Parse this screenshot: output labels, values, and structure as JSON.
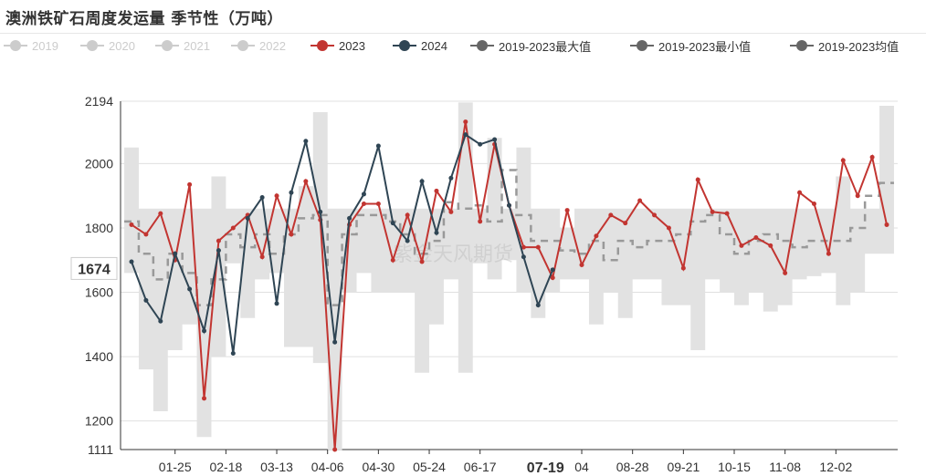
{
  "title": "澳洲铁矿石周度发运量 季节性（万吨）",
  "watermark": "紫金天风期货",
  "legend": [
    {
      "label": "2019",
      "color": "#cccccc",
      "off": true,
      "dashed": false
    },
    {
      "label": "2020",
      "color": "#cccccc",
      "off": true,
      "dashed": false
    },
    {
      "label": "2021",
      "color": "#cccccc",
      "off": true,
      "dashed": false
    },
    {
      "label": "2022",
      "color": "#cccccc",
      "off": true,
      "dashed": false
    },
    {
      "label": "2023",
      "color": "#c23531",
      "off": false,
      "dashed": false
    },
    {
      "label": "2024",
      "color": "#2f4554",
      "off": false,
      "dashed": false
    },
    {
      "label": "2019-2023最大值",
      "color": "#666666",
      "off": false,
      "dashed": false
    },
    {
      "label": "2019-2023最小值",
      "color": "#666666",
      "off": false,
      "dashed": false
    },
    {
      "label": "2019-2023均值",
      "color": "#666666",
      "off": false,
      "dashed": true
    }
  ],
  "pointer": {
    "y_label": "1674",
    "x_label": "07-19",
    "y_value": 1674,
    "x_index": 28.5
  },
  "chart_data": {
    "type": "line",
    "ylim": [
      1111,
      2194
    ],
    "yticks": [
      1111,
      1200,
      1400,
      1600,
      1800,
      2000,
      2194
    ],
    "xticks": [
      {
        "label": "01-25",
        "index": 3
      },
      {
        "label": "02-18",
        "index": 6.5
      },
      {
        "label": "03-13",
        "index": 10
      },
      {
        "label": "04-06",
        "index": 13.5
      },
      {
        "label": "04-30",
        "index": 17
      },
      {
        "label": "05-24",
        "index": 20.5
      },
      {
        "label": "06-17",
        "index": 24
      },
      {
        "label": "04",
        "index": 31
      },
      {
        "label": "08-28",
        "index": 34.5
      },
      {
        "label": "09-21",
        "index": 38
      },
      {
        "label": "10-15",
        "index": 41.5
      },
      {
        "label": "11-08",
        "index": 45
      },
      {
        "label": "12-02",
        "index": 48.5
      }
    ],
    "x_count": 53,
    "series": [
      {
        "name": "2019-2023最大值",
        "color": "#e2e2e2",
        "values": [
          2050,
          1860,
          1860,
          1860,
          1860,
          1860,
          1960,
          1860,
          1860,
          1860,
          1860,
          1860,
          1930,
          2160,
          1860,
          1860,
          1860,
          1860,
          1860,
          1860,
          1860,
          1860,
          1860,
          2190,
          1860,
          2080,
          1860,
          2050,
          1860,
          1860,
          1800,
          1860,
          1860,
          1860,
          1860,
          1860,
          1860,
          1860,
          1860,
          1860,
          1860,
          1860,
          1860,
          1860,
          1860,
          1860,
          1860,
          1860,
          1860,
          1960,
          1860,
          1860,
          2180
        ]
      },
      {
        "name": "2019-2023最小值",
        "color": "#e2e2e2",
        "values": [
          1660,
          1360,
          1230,
          1420,
          1500,
          1150,
          1400,
          1690,
          1520,
          1640,
          1660,
          1430,
          1430,
          1380,
          1110,
          1600,
          1660,
          1600,
          1600,
          1600,
          1350,
          1500,
          1640,
          1350,
          1690,
          1640,
          1700,
          1600,
          1520,
          1600,
          1640,
          1640,
          1500,
          1600,
          1520,
          1640,
          1640,
          1560,
          1560,
          1420,
          1640,
          1600,
          1560,
          1600,
          1540,
          1560,
          1640,
          1650,
          1660,
          1560,
          1600,
          1720,
          1720
        ]
      },
      {
        "name": "2019-2023均值",
        "color": "#999999",
        "dashed": true,
        "values": [
          1820,
          1720,
          1640,
          1720,
          1660,
          1560,
          1640,
          1780,
          1740,
          1780,
          1720,
          1780,
          1830,
          1840,
          1560,
          1780,
          1840,
          1840,
          1820,
          1780,
          1720,
          1760,
          1880,
          1860,
          1870,
          1820,
          1980,
          1840,
          1760,
          1760,
          1730,
          1720,
          1760,
          1700,
          1760,
          1740,
          1760,
          1760,
          1780,
          1820,
          1840,
          1780,
          1720,
          1760,
          1780,
          1760,
          1740,
          1760,
          1760,
          1760,
          1800,
          1900,
          1940
        ]
      },
      {
        "name": "2023",
        "color": "#c23531",
        "values": [
          1810,
          1780,
          1845,
          1700,
          1935,
          1270,
          1760,
          1800,
          1840,
          1710,
          1900,
          1780,
          1945,
          1825,
          1111,
          1810,
          1875,
          1875,
          1700,
          1840,
          1695,
          1915,
          1850,
          2130,
          1820,
          2060,
          1870,
          1740,
          1740,
          1645,
          1855,
          1685,
          1775,
          1840,
          1815,
          1885,
          1840,
          1800,
          1675,
          1950,
          1850,
          1845,
          1745,
          1770,
          1745,
          1660,
          1910,
          1875,
          1720,
          2010,
          1900,
          2020,
          1810
        ]
      },
      {
        "name": "2024",
        "color": "#2f4554",
        "values": [
          1695,
          1575,
          1510,
          1720,
          1610,
          1480,
          1730,
          1410,
          1830,
          1895,
          1565,
          1910,
          2070,
          1850,
          1445,
          1830,
          1905,
          2055,
          1815,
          1760,
          1945,
          1785,
          1955,
          2090,
          2060,
          2075,
          1870,
          1710,
          1560,
          1670
        ]
      }
    ]
  }
}
